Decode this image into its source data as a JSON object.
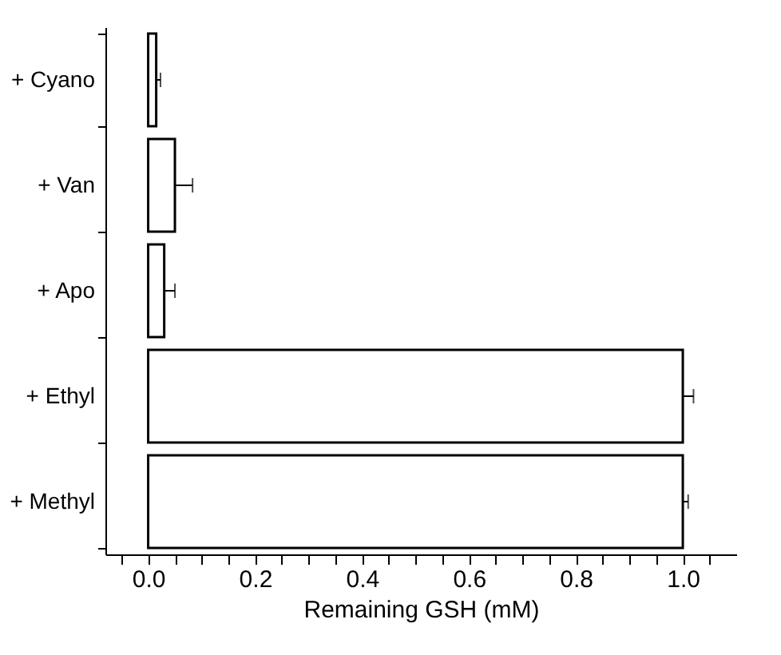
{
  "chart_data": {
    "type": "bar",
    "orientation": "horizontal",
    "xlabel": "Remaining GSH (mM)",
    "categories": [
      "+ Cyano",
      "+ Van",
      "+ Apo",
      "+ Ethyl",
      "+ Methyl"
    ],
    "values": [
      0.015,
      0.05,
      0.03,
      1.0,
      1.0
    ],
    "errors": [
      0.008,
      0.033,
      0.02,
      0.02,
      0.01
    ],
    "color": "#ffffff",
    "xlim": [
      -0.08,
      1.1
    ],
    "xticks": [
      {
        "value": -0.05,
        "label": null
      },
      {
        "value": 0,
        "label": "0.0"
      },
      {
        "value": 0.05,
        "label": null
      },
      {
        "value": 0.1,
        "label": null
      },
      {
        "value": 0.15,
        "label": null
      },
      0.2,
      {
        "value": 0.25,
        "label": null
      },
      {
        "value": 0.3,
        "label": null
      },
      {
        "value": 0.35,
        "label": null
      },
      0.4,
      {
        "value": 0.45,
        "label": null
      },
      {
        "value": 0.5,
        "label": null
      },
      {
        "value": 0.55,
        "label": null
      },
      0.6,
      {
        "value": 0.65,
        "label": null
      },
      {
        "value": 0.7,
        "label": null
      },
      {
        "value": 0.75,
        "label": null
      },
      0.8,
      {
        "value": 0.85,
        "label": null
      },
      {
        "value": 0.9,
        "label": null
      },
      {
        "value": 0.95,
        "label": null
      },
      {
        "value": 1,
        "label": "1.0"
      },
      {
        "value": 1.05,
        "label": null
      }
    ],
    "grid": false
  }
}
